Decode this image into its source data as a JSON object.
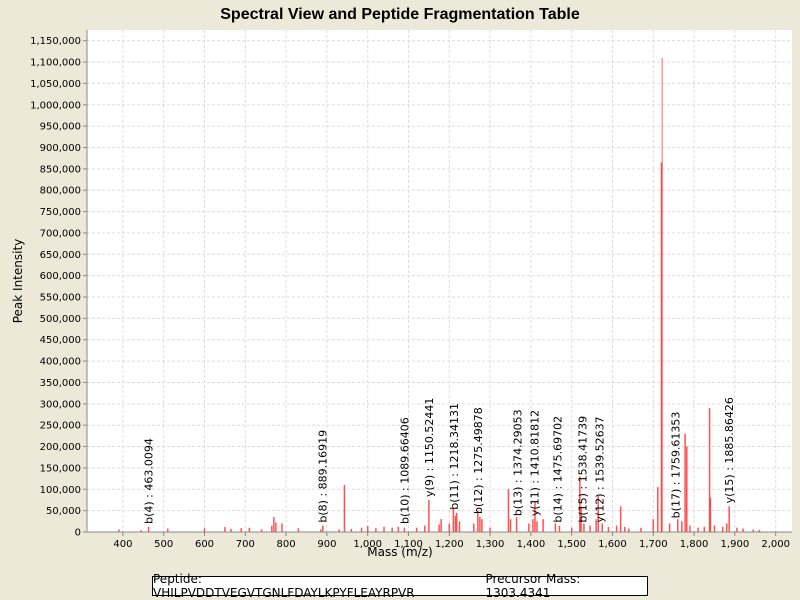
{
  "chart_data": {
    "type": "bar",
    "title": "Spectral View and Peptide Fragmentation Table",
    "xlabel": "Mass (m/z)",
    "ylabel": "Peak Intensity",
    "xlim": [
      312,
      2040
    ],
    "ylim": [
      0,
      1175000
    ],
    "xticks": [
      400,
      500,
      600,
      700,
      800,
      900,
      1000,
      1100,
      1200,
      1300,
      1400,
      1500,
      1600,
      1700,
      1800,
      1900,
      2000
    ],
    "xtick_labels": [
      "400",
      "500",
      "600",
      "700",
      "800",
      "900",
      "1,000",
      "1,100",
      "1,200",
      "1,300",
      "1,400",
      "1,500",
      "1,600",
      "1,700",
      "1,800",
      "1,900",
      "2,000"
    ],
    "yticks": [
      0,
      50000,
      100000,
      150000,
      200000,
      250000,
      300000,
      350000,
      400000,
      450000,
      500000,
      550000,
      600000,
      650000,
      700000,
      750000,
      800000,
      850000,
      900000,
      950000,
      1000000,
      1050000,
      1100000,
      1150000
    ],
    "ytick_labels": [
      "0",
      "50,000",
      "100,000",
      "150,000",
      "200,000",
      "250,000",
      "300,000",
      "350,000",
      "400,000",
      "450,000",
      "500,000",
      "550,000",
      "600,000",
      "650,000",
      "700,000",
      "750,000",
      "800,000",
      "850,000",
      "900,000",
      "950,000",
      "1,000,000",
      "1,050,000",
      "1,100,000",
      "1,150,000"
    ],
    "grid": true,
    "peaks": [
      [
        390,
        6000
      ],
      [
        445,
        4000
      ],
      [
        463,
        12000
      ],
      [
        510,
        8000
      ],
      [
        600,
        9000
      ],
      [
        650,
        12000
      ],
      [
        665,
        7000
      ],
      [
        690,
        9000
      ],
      [
        710,
        10000
      ],
      [
        740,
        6000
      ],
      [
        765,
        15000
      ],
      [
        770,
        35000
      ],
      [
        775,
        22000
      ],
      [
        790,
        20000
      ],
      [
        830,
        9000
      ],
      [
        885,
        6000
      ],
      [
        890,
        15000
      ],
      [
        930,
        6000
      ],
      [
        943,
        110000
      ],
      [
        960,
        7000
      ],
      [
        985,
        10000
      ],
      [
        1000,
        14000
      ],
      [
        1020,
        9000
      ],
      [
        1040,
        12000
      ],
      [
        1060,
        10000
      ],
      [
        1075,
        12000
      ],
      [
        1090,
        10000
      ],
      [
        1120,
        10000
      ],
      [
        1140,
        15000
      ],
      [
        1150,
        75000
      ],
      [
        1175,
        18000
      ],
      [
        1180,
        30000
      ],
      [
        1200,
        20000
      ],
      [
        1210,
        55000
      ],
      [
        1215,
        38000
      ],
      [
        1218,
        45000
      ],
      [
        1225,
        25000
      ],
      [
        1260,
        20000
      ],
      [
        1270,
        50000
      ],
      [
        1275,
        35000
      ],
      [
        1280,
        30000
      ],
      [
        1300,
        10000
      ],
      [
        1345,
        100000
      ],
      [
        1350,
        30000
      ],
      [
        1365,
        35000
      ],
      [
        1395,
        20000
      ],
      [
        1405,
        30000
      ],
      [
        1410,
        70000
      ],
      [
        1415,
        25000
      ],
      [
        1430,
        30000
      ],
      [
        1460,
        20000
      ],
      [
        1470,
        15000
      ],
      [
        1500,
        10000
      ],
      [
        1520,
        130000
      ],
      [
        1523,
        60000
      ],
      [
        1530,
        20000
      ],
      [
        1545,
        15000
      ],
      [
        1560,
        30000
      ],
      [
        1565,
        85000
      ],
      [
        1575,
        20000
      ],
      [
        1590,
        12000
      ],
      [
        1610,
        15000
      ],
      [
        1620,
        60000
      ],
      [
        1630,
        12000
      ],
      [
        1640,
        8000
      ],
      [
        1670,
        10000
      ],
      [
        1700,
        30000
      ],
      [
        1711,
        105000
      ],
      [
        1720,
        865000
      ],
      [
        1722,
        1110000
      ],
      [
        1740,
        20000
      ],
      [
        1760,
        30000
      ],
      [
        1770,
        25000
      ],
      [
        1778,
        230000
      ],
      [
        1782,
        200000
      ],
      [
        1790,
        15000
      ],
      [
        1810,
        10000
      ],
      [
        1825,
        12000
      ],
      [
        1838,
        290000
      ],
      [
        1840,
        80000
      ],
      [
        1850,
        15000
      ],
      [
        1870,
        12000
      ],
      [
        1880,
        20000
      ],
      [
        1886,
        60000
      ],
      [
        1905,
        10000
      ],
      [
        1920,
        8000
      ],
      [
        1945,
        6000
      ],
      [
        1960,
        5000
      ]
    ],
    "annotations": [
      {
        "label": "b(4) : 463.0094",
        "mz": 463,
        "intensity": 12000
      },
      {
        "label": "b(8) : 889.16919",
        "mz": 889,
        "intensity": 15000
      },
      {
        "label": "b(10) : 1089.66406",
        "mz": 1090,
        "intensity": 10000
      },
      {
        "label": "y(9) : 1150.52441",
        "mz": 1150,
        "intensity": 75000
      },
      {
        "label": "b(11) : 1218.34131",
        "mz": 1212,
        "intensity": 45000
      },
      {
        "label": "b(12) : 1275.49878",
        "mz": 1270,
        "intensity": 35000
      },
      {
        "label": "b(13) : 1374.29053",
        "mz": 1367,
        "intensity": 30000
      },
      {
        "label": "y(11) : 1410.81812",
        "mz": 1405,
        "intensity": 30000
      },
      {
        "label": "b(14) : 1475.69702",
        "mz": 1465,
        "intensity": 15000
      },
      {
        "label": "b(15) : 1538.41739",
        "mz": 1527,
        "intensity": 15000
      },
      {
        "label": "y(12) : 1539.52637",
        "mz": 1529,
        "intensity": 15000
      },
      {
        "label": "b(17) : 1759.61353",
        "mz": 1755,
        "intensity": 25000
      },
      {
        "label": "y(15) : 1885.86426",
        "mz": 1885,
        "intensity": 60000
      }
    ],
    "peak_color": "#ff3333",
    "footer": {
      "peptide": "Peptide: VHILPVDDTVEGVTGNLFDAYLKPYFLEAYRPVR",
      "precursor": "Precursor Mass: 1303.4341"
    }
  }
}
